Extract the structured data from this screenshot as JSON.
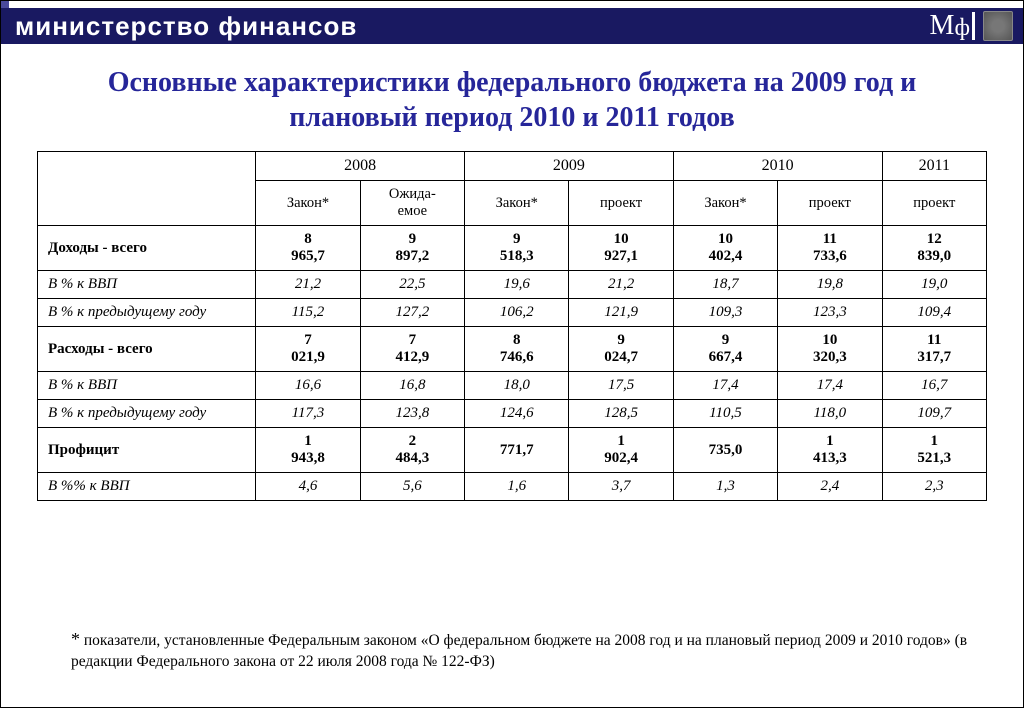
{
  "header": {
    "ministry": "министерство финансов",
    "logo_letters": {
      "m": "М",
      "f": "ф"
    }
  },
  "title": "Основные характеристики федерального бюджета на 2009 год и плановый период 2010 и 2011 годов",
  "table": {
    "year_groups": [
      {
        "label": "2008",
        "span": 2
      },
      {
        "label": "2009",
        "span": 2
      },
      {
        "label": "2010",
        "span": 2
      },
      {
        "label": "2011",
        "span": 1
      }
    ],
    "sub_headers": [
      "Закон*",
      "Ожида-\nемое",
      "Закон*",
      "проект",
      "Закон*",
      "проект",
      "проект"
    ],
    "rows": [
      {
        "label": "Доходы - всего",
        "style": "bold",
        "cells": [
          "8 965,7",
          "9 897,2",
          "9 518,3",
          "10 927,1",
          "10 402,4",
          "11 733,6",
          "12 839,0"
        ]
      },
      {
        "label": "В % к ВВП",
        "style": "italic",
        "cells": [
          "21,2",
          "22,5",
          "19,6",
          "21,2",
          "18,7",
          "19,8",
          "19,0"
        ]
      },
      {
        "label": "В % к предыдущему году",
        "style": "italic",
        "cells": [
          "115,2",
          "127,2",
          "106,2",
          "121,9",
          "109,3",
          "123,3",
          "109,4"
        ]
      },
      {
        "label": "Расходы - всего",
        "style": "bold",
        "cells": [
          "7 021,9",
          "7 412,9",
          "8 746,6",
          "9 024,7",
          "9 667,4",
          "10 320,3",
          "11 317,7"
        ]
      },
      {
        "label": "В % к ВВП",
        "style": "italic",
        "cells": [
          "16,6",
          "16,8",
          "18,0",
          "17,5",
          "17,4",
          "17,4",
          "16,7"
        ]
      },
      {
        "label": "В % к предыдущему году",
        "style": "italic",
        "cells": [
          "117,3",
          "123,8",
          "124,6",
          "128,5",
          "110,5",
          "118,0",
          "109,7"
        ]
      },
      {
        "label": "Профицит",
        "style": "bold",
        "cells": [
          "1 943,8",
          "2 484,3",
          "771,7",
          "1 902,4",
          "735,0",
          "1 413,3",
          "1 521,3"
        ]
      },
      {
        "label": "В %% к ВВП",
        "style": "italic",
        "cells": [
          "4,6",
          "5,6",
          "1,6",
          "3,7",
          "1,3",
          "2,4",
          "2,3"
        ]
      }
    ]
  },
  "footnote": {
    "star": "*",
    "text": " показатели, установленные Федеральным законом «О федеральном бюджете на 2008 год и на плановый период 2009 и 2010 годов» (в редакции Федерального закона от 22 июля 2008 года № 122-ФЗ)"
  },
  "colors": {
    "header_bg": "#191961",
    "title_color": "#262699",
    "border": "#000000",
    "background": "#ffffff"
  },
  "typography": {
    "title_fontsize_pt": 21,
    "header_fontsize_pt": 20,
    "table_fontsize_pt": 11,
    "footnote_fontsize_pt": 12,
    "font_family": "Times New Roman"
  }
}
